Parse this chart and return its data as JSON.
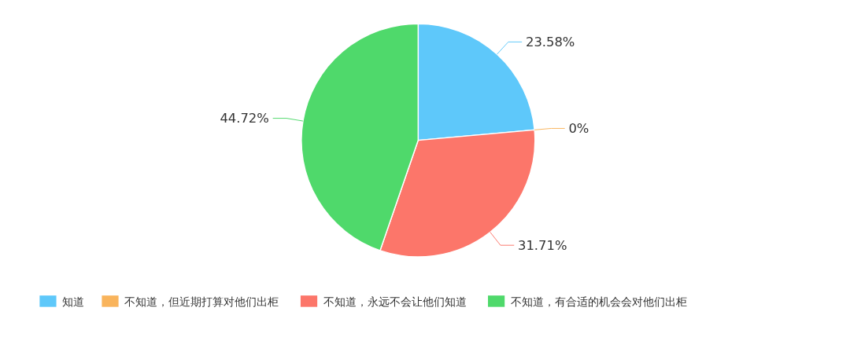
{
  "chart_data": {
    "type": "pie",
    "categories": [
      "知道",
      "不知道，但近期打算对他们出柜",
      "不知道，永远不会让他们知道",
      "不知道，有合适的机会会对他们出柜"
    ],
    "values": [
      23.58,
      0,
      31.71,
      44.72
    ],
    "colors": [
      "#5ec8fa",
      "#f9b45c",
      "#fc766a",
      "#4fd96b"
    ],
    "value_labels": [
      "23.58%",
      "0%",
      "31.71%",
      "44.72%"
    ],
    "legend": "bottom"
  }
}
